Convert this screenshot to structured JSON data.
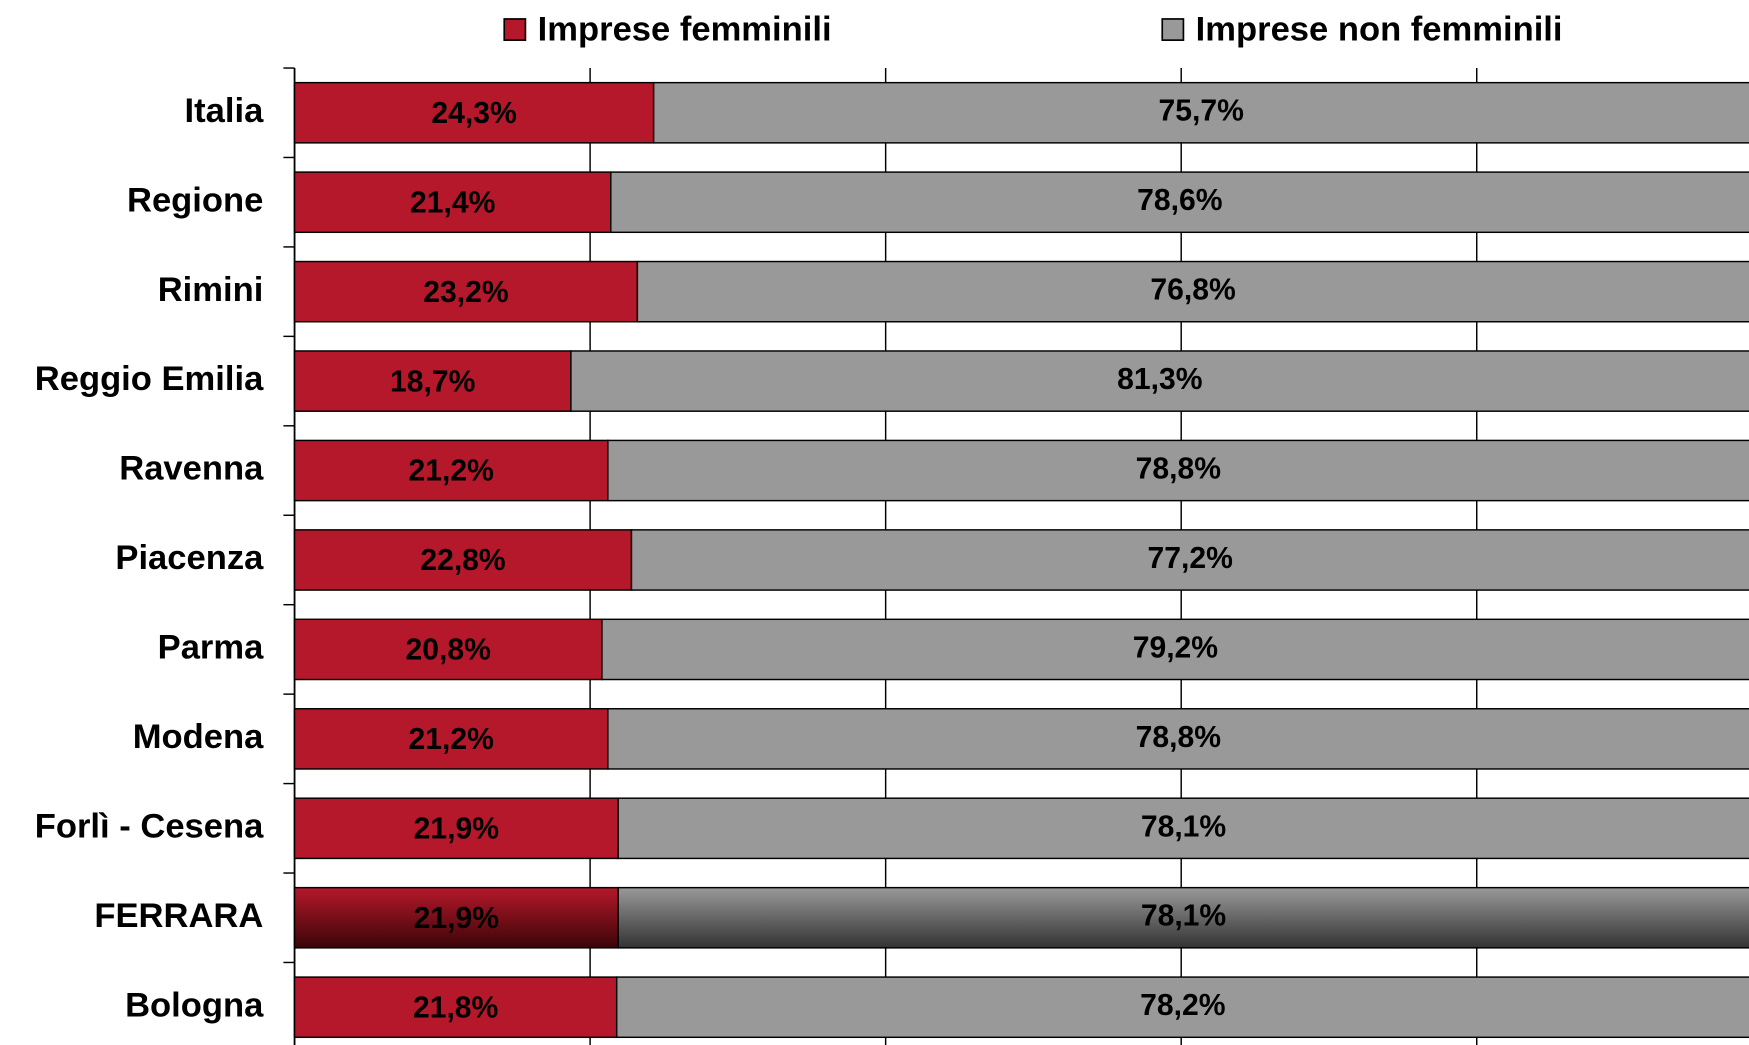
{
  "chart_data": {
    "type": "stacked_barh",
    "categories": [
      "Italia",
      "Regione",
      "Rimini",
      "Reggio Emilia",
      "Ravenna",
      "Piacenza",
      "Parma",
      "Modena",
      "Forlì - Cesena",
      "FERRARA",
      "Bologna"
    ],
    "series": [
      {
        "name": "Imprese femminili",
        "color": "#b5182a",
        "values": [
          24.3,
          21.4,
          23.2,
          18.7,
          21.2,
          22.8,
          20.8,
          21.2,
          21.9,
          21.9,
          21.8
        ],
        "value_labels": [
          "24,3%",
          "21,4%",
          "23,2%",
          "18,7%",
          "21,2%",
          "22,8%",
          "20,8%",
          "21,2%",
          "21,9%",
          "21,9%",
          "21,8%"
        ]
      },
      {
        "name": "Imprese non femminili",
        "color": "#999999",
        "values": [
          75.7,
          78.6,
          76.8,
          81.3,
          78.8,
          77.2,
          79.2,
          78.8,
          78.1,
          78.1,
          78.2
        ],
        "value_labels": [
          "75,7%",
          "78,6%",
          "76,8%",
          "81,3%",
          "78,8%",
          "77,2%",
          "79,2%",
          "78,8%",
          "78,1%",
          "78,1%",
          "78,2%"
        ]
      }
    ],
    "xlim": [
      0,
      100
    ],
    "xticks": [
      0,
      20,
      40,
      60,
      80,
      100
    ],
    "grid": true,
    "legend": "top",
    "highlight_category": "FERRARA"
  }
}
